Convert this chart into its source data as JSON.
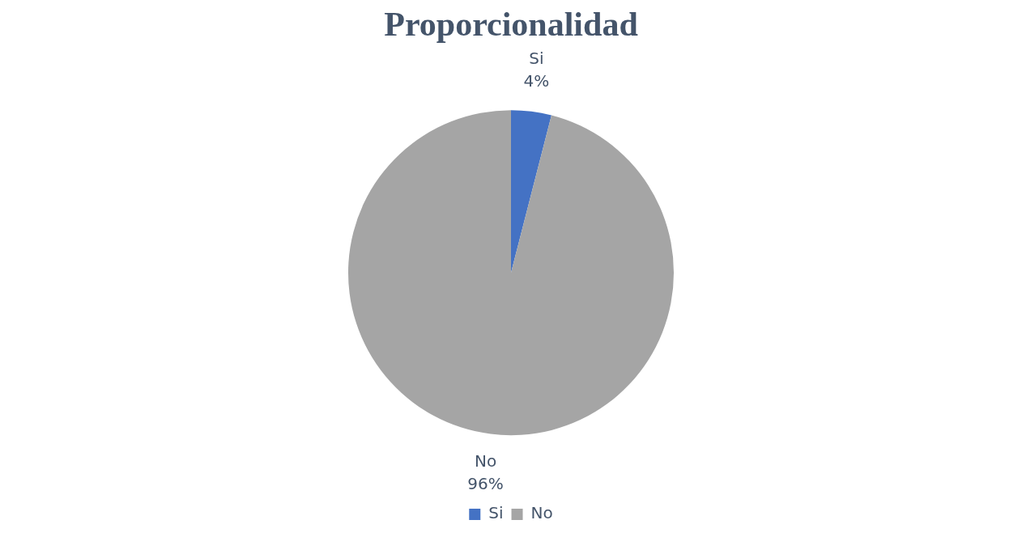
{
  "chart_data": {
    "type": "pie",
    "title": "Proporcionalidad",
    "categories": [
      "Si",
      "No"
    ],
    "values": [
      4,
      96
    ],
    "colors": [
      "#4472c4",
      "#a5a5a5"
    ],
    "value_labels": [
      "4%",
      "96%"
    ],
    "legend": "bottom"
  }
}
